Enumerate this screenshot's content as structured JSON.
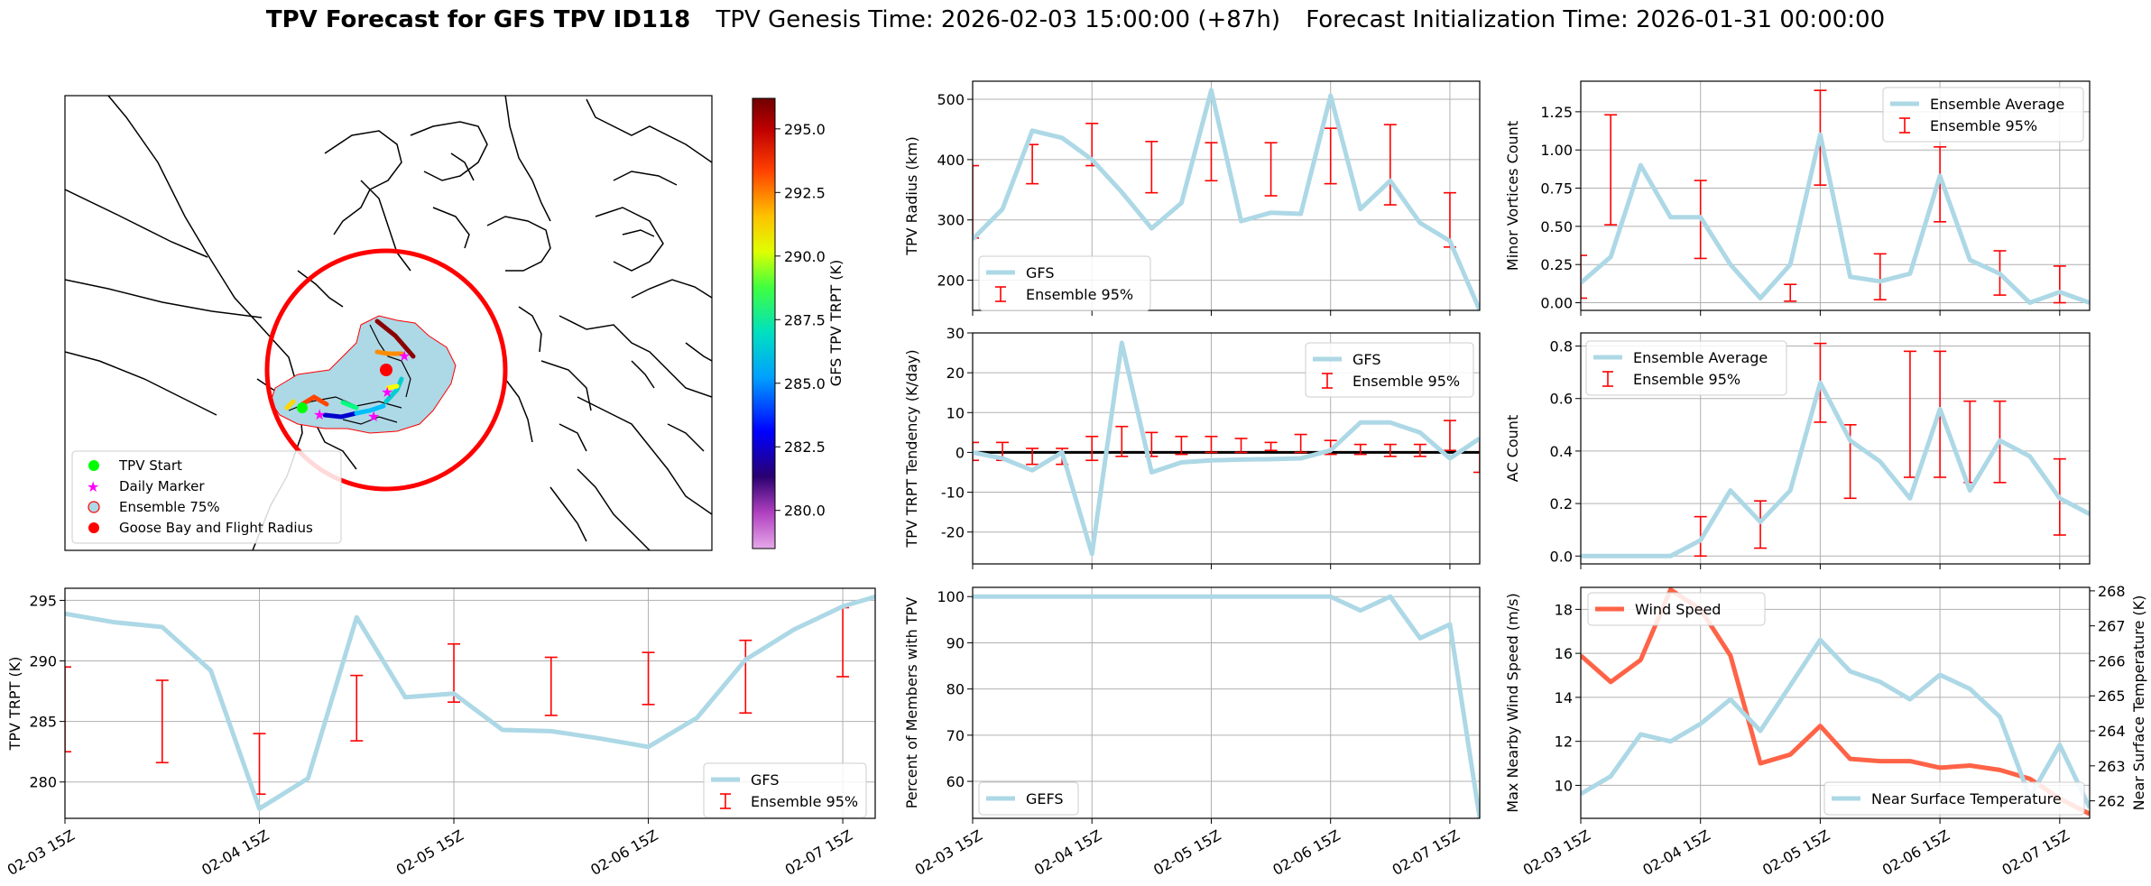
{
  "title": {
    "bold": "TPV Forecast for GFS TPV ID118",
    "genesis": "TPV Genesis Time: 2026-02-03 15:00:00 (+87h)",
    "init": "Forecast Initialization Time: 2026-01-31 00:00:00"
  },
  "colors": {
    "gfs": "#add8e6",
    "ens": "#ff0000",
    "wind": "#ff6347",
    "temp_axis": "#4169e1",
    "grid": "#b0b0b0",
    "shade": "#add8e6"
  },
  "map": {
    "colorbar_label": "GFS TPV TRPT (K)",
    "colorbar_range": [
      278.5,
      296.2
    ],
    "colorbar_ticks": [
      280.0,
      282.5,
      285.0,
      287.5,
      290.0,
      292.5,
      295.0
    ],
    "legend": [
      "TPV Start",
      "Daily Marker",
      "Ensemble 75%",
      "Goose Bay and Flight Radius"
    ],
    "legend_colors": [
      "#00ff00",
      "#ff00ff",
      "#add8e6",
      "#ff0000"
    ]
  },
  "x_ticks": [
    "02-03 15Z",
    "02-04 15Z",
    "02-05 15Z",
    "02-06 15Z",
    "02-07 15Z"
  ],
  "chart_data": [
    {
      "id": "trpt",
      "type": "line",
      "ylabel": "TPV TRPT (K)",
      "ylim": [
        277,
        296
      ],
      "yticks": [
        280,
        285,
        290,
        295
      ],
      "x_hours": [
        0,
        6,
        12,
        18,
        24,
        30,
        36,
        42,
        48,
        54,
        60,
        66,
        72,
        78,
        84,
        90,
        96,
        100
      ],
      "gfs": [
        293.9,
        293.2,
        292.8,
        289.2,
        277.8,
        280.3,
        293.6,
        287.0,
        287.3,
        284.3,
        284.2,
        283.6,
        282.9,
        285.3,
        290.1,
        292.6,
        294.5,
        295.3
      ],
      "ens_x": [
        0,
        12,
        24,
        36,
        48,
        60,
        72,
        84,
        96
      ],
      "ens_lo": [
        282.5,
        281.6,
        279.0,
        283.4,
        286.6,
        285.5,
        286.4,
        285.7,
        288.7
      ],
      "ens_hi": [
        289.5,
        288.4,
        284.0,
        288.8,
        291.4,
        290.3,
        290.7,
        291.7,
        294.4
      ],
      "legend": [
        "GFS",
        "Ensemble 95%"
      ]
    },
    {
      "id": "radius",
      "type": "line",
      "ylabel": "TPV Radius (km)",
      "ylim": [
        150,
        530
      ],
      "yticks": [
        200,
        300,
        400,
        500
      ],
      "x_hours": [
        0,
        6,
        12,
        18,
        24,
        30,
        36,
        42,
        48,
        54,
        60,
        66,
        72,
        78,
        84,
        90,
        96,
        102
      ],
      "gfs": [
        268,
        318,
        448,
        436,
        400,
        346,
        286,
        328,
        515,
        298,
        312,
        310,
        506,
        318,
        365,
        295,
        265,
        150
      ],
      "ens_x": [
        0,
        12,
        24,
        36,
        48,
        60,
        72,
        84,
        96
      ],
      "ens_lo": [
        270,
        360,
        390,
        345,
        365,
        340,
        360,
        325,
        255
      ],
      "ens_hi": [
        390,
        425,
        460,
        430,
        428,
        428,
        452,
        458,
        345
      ],
      "legend": [
        "GFS",
        "Ensemble 95%"
      ]
    },
    {
      "id": "tendency",
      "type": "line",
      "ylabel": "TPV TRPT Tendency (K/day)",
      "ylim": [
        -28,
        30
      ],
      "yticks": [
        -20,
        -10,
        0,
        10,
        20,
        30
      ],
      "x_hours": [
        0,
        6,
        12,
        18,
        24,
        30,
        36,
        42,
        48,
        54,
        60,
        66,
        72,
        78,
        84,
        90,
        96,
        102
      ],
      "gfs": [
        0.0,
        -1.5,
        -4.5,
        0.0,
        -25.5,
        27.5,
        -5.0,
        -2.5,
        -2.0,
        -1.8,
        -1.7,
        -1.5,
        0.5,
        7.5,
        7.5,
        5.0,
        -1.5,
        3.5
      ],
      "ens_x": [
        0,
        6,
        12,
        18,
        24,
        30,
        36,
        42,
        48,
        54,
        60,
        66,
        72,
        78,
        84,
        90,
        96,
        102
      ],
      "ens_lo": [
        -2.0,
        -2.0,
        -3.0,
        -3.0,
        -2.0,
        -1.0,
        -1.0,
        -0.5,
        0.0,
        0.0,
        0.5,
        0.0,
        -0.5,
        -0.5,
        -1.0,
        -1.0,
        0.5,
        -5.0
      ],
      "ens_hi": [
        2.5,
        2.5,
        1.0,
        1.0,
        4.0,
        6.5,
        5.0,
        4.0,
        4.0,
        3.5,
        2.5,
        4.5,
        3.0,
        2.0,
        2.0,
        2.0,
        8.0,
        3.0
      ],
      "legend": [
        "GFS",
        "Ensemble 95%"
      ]
    },
    {
      "id": "members",
      "type": "line",
      "ylabel": "Percent of Members with TPV",
      "ylim": [
        52,
        102
      ],
      "yticks": [
        60,
        70,
        80,
        90,
        100
      ],
      "x_hours": [
        0,
        6,
        12,
        18,
        24,
        30,
        36,
        42,
        48,
        54,
        60,
        66,
        72,
        78,
        84,
        90,
        96,
        102
      ],
      "gfs": [
        100,
        100,
        100,
        100,
        100,
        100,
        100,
        100,
        100,
        100,
        100,
        100,
        100,
        97,
        100,
        91,
        94,
        52
      ],
      "legend": [
        "GEFS"
      ]
    },
    {
      "id": "minor",
      "type": "line",
      "ylabel": "Minor Vortices Count",
      "ylim": [
        -0.05,
        1.45
      ],
      "yticks": [
        0.0,
        0.25,
        0.5,
        0.75,
        1.0,
        1.25
      ],
      "x_hours": [
        0,
        6,
        12,
        18,
        24,
        30,
        36,
        42,
        48,
        54,
        60,
        66,
        72,
        78,
        84,
        90,
        96,
        102
      ],
      "gfs": [
        0.13,
        0.3,
        0.9,
        0.56,
        0.56,
        0.25,
        0.03,
        0.25,
        1.1,
        0.17,
        0.14,
        0.19,
        0.83,
        0.28,
        0.19,
        0.0,
        0.07,
        0.0
      ],
      "ens_x": [
        0,
        6,
        24,
        42,
        48,
        60,
        72,
        84,
        96
      ],
      "ens_lo": [
        0.03,
        0.51,
        0.29,
        0.01,
        0.77,
        0.02,
        0.53,
        0.05,
        0.0
      ],
      "ens_hi": [
        0.31,
        1.23,
        0.8,
        0.12,
        1.39,
        0.32,
        1.02,
        0.34,
        0.24
      ],
      "legend": [
        "Ensemble Average",
        "Ensemble 95%"
      ]
    },
    {
      "id": "ac",
      "type": "line",
      "ylabel": "AC Count",
      "ylim": [
        -0.03,
        0.85
      ],
      "yticks": [
        0.0,
        0.2,
        0.4,
        0.6,
        0.8
      ],
      "x_hours": [
        0,
        6,
        12,
        18,
        24,
        30,
        36,
        42,
        48,
        54,
        60,
        66,
        72,
        78,
        84,
        90,
        96,
        102
      ],
      "gfs": [
        0.0,
        0.0,
        0.0,
        0.0,
        0.06,
        0.25,
        0.13,
        0.25,
        0.66,
        0.44,
        0.36,
        0.22,
        0.56,
        0.25,
        0.44,
        0.38,
        0.22,
        0.16
      ],
      "ens_x": [
        0,
        12,
        24,
        36,
        48,
        54,
        66,
        72,
        78,
        84,
        96
      ],
      "ens_lo": [
        0.0,
        0.0,
        0.0,
        0.03,
        0.51,
        0.22,
        0.3,
        0.3,
        0.28,
        0.28,
        0.08
      ],
      "ens_hi": [
        0.0,
        0.0,
        0.15,
        0.21,
        0.81,
        0.5,
        0.78,
        0.78,
        0.59,
        0.59,
        0.37
      ],
      "legend": [
        "Ensemble Average",
        "Ensemble 95%"
      ]
    },
    {
      "id": "wind_temp",
      "type": "line",
      "ylabel": "Max Nearby Wind Speed (m/s)",
      "ylim": [
        8.5,
        19.0
      ],
      "yticks": [
        10,
        12,
        14,
        16,
        18
      ],
      "y2label": "Near Surface Temperature (K)",
      "y2lim": [
        261.5,
        268.1
      ],
      "y2ticks": [
        262,
        263,
        264,
        265,
        266,
        267,
        268
      ],
      "x_hours": [
        0,
        6,
        12,
        18,
        24,
        30,
        36,
        42,
        48,
        54,
        60,
        66,
        72,
        78,
        84,
        90,
        96,
        102
      ],
      "wind": [
        15.9,
        14.7,
        15.7,
        18.9,
        18.0,
        15.9,
        11.0,
        11.4,
        12.7,
        11.2,
        11.1,
        11.1,
        10.8,
        10.9,
        10.7,
        10.3,
        9.4,
        8.7
      ],
      "temp": [
        262.2,
        262.7,
        263.9,
        263.7,
        264.2,
        264.9,
        264.0,
        265.3,
        266.6,
        265.7,
        265.4,
        264.9,
        265.6,
        265.2,
        264.4,
        262.1,
        263.6,
        261.8
      ],
      "legend": [
        "Wind Speed",
        "Near Surface Temperature"
      ]
    }
  ]
}
